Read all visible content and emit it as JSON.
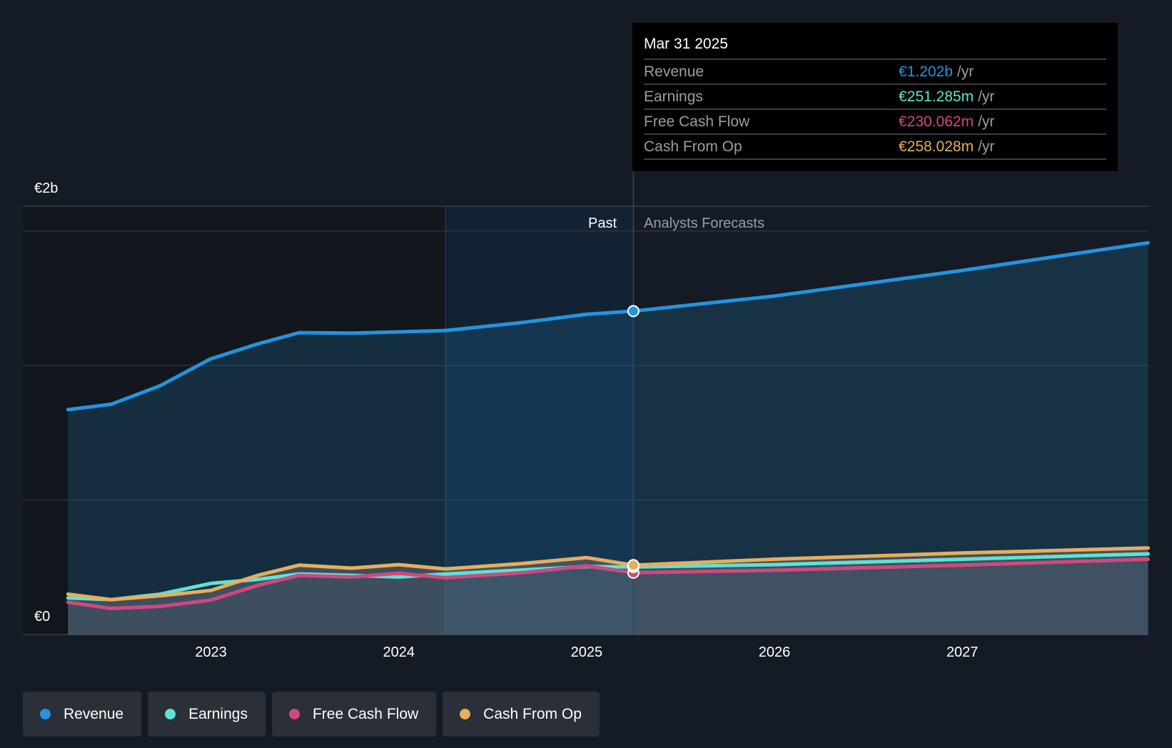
{
  "tooltip": {
    "date": "Mar 31 2025",
    "unit": "/yr",
    "rows": [
      {
        "label": "Revenue",
        "value": "€1.202b",
        "color": "#2394df"
      },
      {
        "label": "Earnings",
        "value": "€251.285m",
        "color": "#5fe3d0"
      },
      {
        "label": "Free Cash Flow",
        "value": "€230.062m",
        "color": "#d0487f"
      },
      {
        "label": "Cash From Op",
        "value": "€258.028m",
        "color": "#e8ae5a"
      }
    ]
  },
  "chart_data": {
    "type": "line",
    "y_top_label": "€2b",
    "y_zero_label": "€0",
    "ylim": [
      0,
      1.6
    ],
    "xlim": [
      2022.0,
      2028.0
    ],
    "x_ticks": [
      "2023",
      "2024",
      "2025",
      "2026",
      "2027"
    ],
    "past_label": "Past",
    "forecast_label": "Analysts Forecasts",
    "divider_year": 2025.25,
    "highlight_start_year": 2024.25,
    "x": [
      2022.24,
      2022.47,
      2022.73,
      2023.0,
      2023.25,
      2023.47,
      2023.75,
      2024.0,
      2024.25,
      2024.66,
      2025.0,
      2025.25,
      2026.0,
      2027.0,
      2027.99
    ],
    "series": [
      {
        "name": "Revenue",
        "color": "#2394df",
        "values": [
          0.836,
          0.856,
          0.925,
          1.025,
          1.08,
          1.122,
          1.12,
          1.125,
          1.13,
          1.16,
          1.19,
          1.202,
          1.258,
          1.353,
          1.456
        ]
      },
      {
        "name": "Earnings",
        "color": "#5fe3d0",
        "values": [
          0.136,
          0.13,
          0.15,
          0.19,
          0.205,
          0.225,
          0.22,
          0.214,
          0.225,
          0.24,
          0.253,
          0.251,
          0.26,
          0.28,
          0.3
        ]
      },
      {
        "name": "Free Cash Flow",
        "color": "#d0487f",
        "values": [
          0.12,
          0.097,
          0.105,
          0.128,
          0.183,
          0.22,
          0.214,
          0.228,
          0.211,
          0.23,
          0.255,
          0.23,
          0.239,
          0.258,
          0.28
        ]
      },
      {
        "name": "Cash From Op",
        "color": "#e8ae5a",
        "values": [
          0.15,
          0.13,
          0.144,
          0.164,
          0.22,
          0.258,
          0.247,
          0.26,
          0.244,
          0.264,
          0.286,
          0.258,
          0.28,
          0.303,
          0.322
        ]
      }
    ]
  }
}
